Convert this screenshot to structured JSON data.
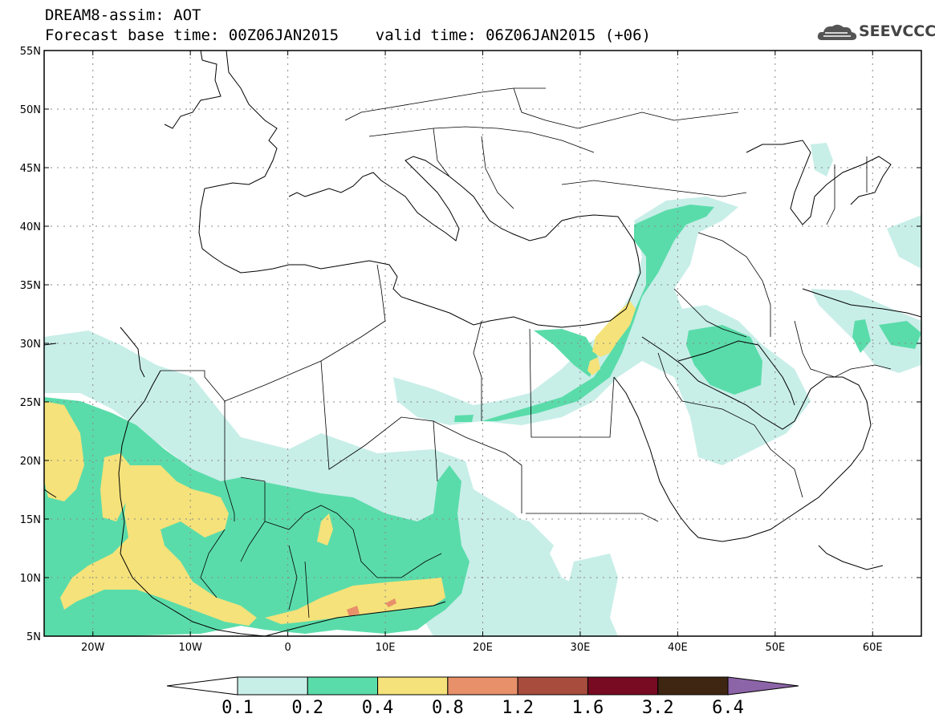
{
  "header": {
    "title_line1": "DREAM8-assim: AOT",
    "title_line2": "Forecast base time: 00Z06JAN2015    valid time: 06Z06JAN2015 (+06)",
    "logo_text": "SEEVCCC"
  },
  "map": {
    "lat_range": [
      5,
      55
    ],
    "lon_range": [
      -25,
      65
    ],
    "lat_ticks": [
      "5N",
      "10N",
      "15N",
      "20N",
      "25N",
      "30N",
      "35N",
      "40N",
      "45N",
      "50N",
      "55N"
    ],
    "lon_ticks": [
      "20W",
      "10W",
      "0",
      "10E",
      "20E",
      "30E",
      "40E",
      "50E",
      "60E"
    ],
    "gridlines": "dotted"
  },
  "colorbar": {
    "labels": [
      "0.1",
      "0.2",
      "0.4",
      "0.8",
      "1.2",
      "1.6",
      "3.2",
      "6.4"
    ],
    "colors": [
      "#ffffff",
      "#c8eee8",
      "#5adcaa",
      "#f5e27a",
      "#e8906a",
      "#a84d3e",
      "#780a22",
      "#3e2612",
      "#8c64a8"
    ]
  },
  "colors": {
    "aot_0_1": "#c8eee8",
    "aot_0_2": "#5adcaa",
    "aot_0_4": "#f5e27a",
    "aot_0_8": "#e8906a"
  }
}
